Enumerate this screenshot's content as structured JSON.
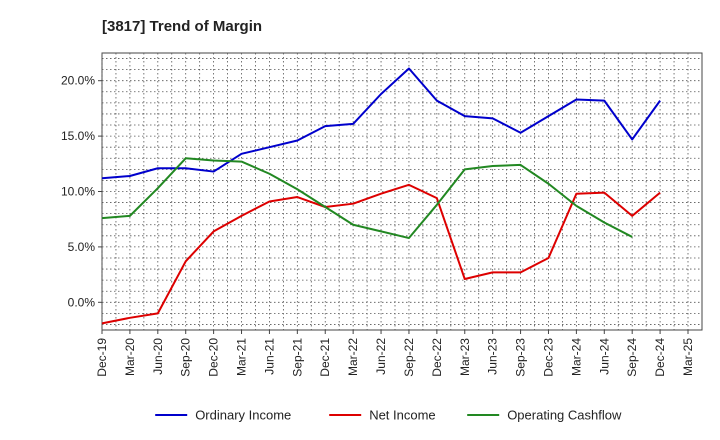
{
  "chart_data": {
    "type": "line",
    "title": "[3817]  Trend of Margin",
    "xlabel": "",
    "ylabel": "",
    "x": [
      "Dec-19",
      "Mar-20",
      "Jun-20",
      "Sep-20",
      "Dec-20",
      "Mar-21",
      "Jun-21",
      "Sep-21",
      "Dec-21",
      "Mar-22",
      "Jun-22",
      "Sep-22",
      "Dec-22",
      "Mar-23",
      "Jun-23",
      "Sep-23",
      "Dec-23",
      "Mar-24",
      "Jun-24",
      "Sep-24",
      "Dec-24",
      "Mar-25"
    ],
    "ylim": [
      -2.5,
      22.5
    ],
    "yticks": [
      0,
      5,
      10,
      15,
      20
    ],
    "ytick_labels": [
      "0.0%",
      "5.0%",
      "10.0%",
      "15.0%",
      "20.0%"
    ],
    "grid": true,
    "legend_position": "bottom",
    "series": [
      {
        "name": "Ordinary Income",
        "color": "#0000cc",
        "values": [
          11.2,
          11.4,
          12.1,
          12.1,
          11.8,
          13.4,
          14.0,
          14.6,
          15.9,
          16.1,
          18.8,
          21.1,
          18.2,
          16.8,
          16.6,
          15.3,
          16.8,
          18.3,
          18.2,
          14.7,
          18.2,
          null
        ]
      },
      {
        "name": "Net Income",
        "color": "#dd0000",
        "values": [
          -1.9,
          -1.4,
          -1.0,
          3.7,
          6.4,
          7.8,
          9.1,
          9.5,
          8.6,
          8.9,
          9.8,
          10.6,
          9.4,
          2.1,
          2.7,
          2.7,
          4.0,
          9.8,
          9.9,
          7.8,
          9.9,
          null
        ]
      },
      {
        "name": "Operating Cashflow",
        "color": "#228822",
        "values": [
          7.6,
          7.8,
          10.3,
          13.0,
          12.8,
          12.7,
          11.6,
          10.2,
          8.6,
          7.0,
          6.4,
          5.8,
          8.8,
          12.0,
          12.3,
          12.4,
          10.7,
          8.7,
          7.2,
          5.9,
          null,
          null
        ]
      }
    ]
  }
}
